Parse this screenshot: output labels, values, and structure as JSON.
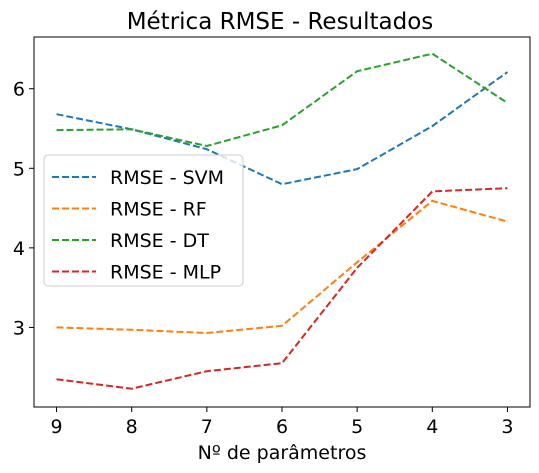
{
  "chart_data": {
    "type": "line",
    "title": "Métrica RMSE - Resultados",
    "xlabel": "Nº de parâmetros",
    "ylabel": "",
    "x": [
      9,
      8,
      7,
      6,
      5,
      4,
      3
    ],
    "x_ticks": [
      "9",
      "8",
      "7",
      "6",
      "5",
      "4",
      "3"
    ],
    "xlim": [
      9.3,
      2.7
    ],
    "ylim": [
      2.0,
      6.65
    ],
    "y_ticks": [
      "3",
      "4",
      "5",
      "6"
    ],
    "legend_position": "center-left",
    "line_style": "dashed",
    "grid": false,
    "series": [
      {
        "name": "RMSE - SVM",
        "color": "#1f77b4",
        "values": [
          5.68,
          5.49,
          5.24,
          4.8,
          4.99,
          5.53,
          6.21
        ]
      },
      {
        "name": "RMSE - RF",
        "color": "#ff7f0e",
        "values": [
          3.0,
          2.97,
          2.93,
          3.02,
          3.82,
          4.59,
          4.33
        ]
      },
      {
        "name": "RMSE - DT",
        "color": "#2ca02c",
        "values": [
          5.48,
          5.49,
          5.28,
          5.54,
          6.22,
          6.44,
          5.82
        ]
      },
      {
        "name": "RMSE - MLP",
        "color": "#d62728",
        "values": [
          2.35,
          2.23,
          2.45,
          2.55,
          3.75,
          4.71,
          4.75
        ]
      }
    ]
  }
}
